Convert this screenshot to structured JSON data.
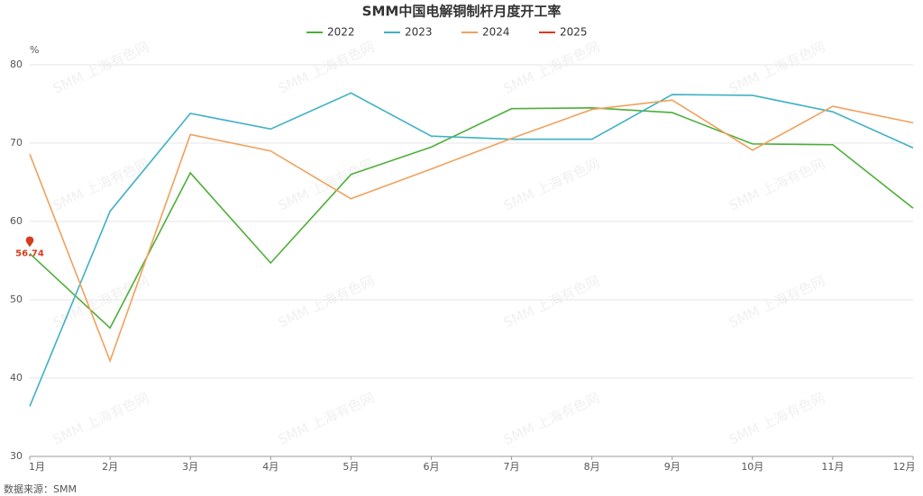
{
  "chart_data": {
    "type": "line",
    "title": "SMM中国电解铜制杆月度开工率",
    "y_unit": "%",
    "source": "数据来源：SMM",
    "watermark": "SMM 上海有色网",
    "categories": [
      "1月",
      "2月",
      "3月",
      "4月",
      "5月",
      "6月",
      "7月",
      "8月",
      "9月",
      "10月",
      "11月",
      "12月"
    ],
    "ylim": [
      30,
      80
    ],
    "yticks": [
      30,
      40,
      50,
      60,
      70,
      80
    ],
    "grid": true,
    "legend": "top",
    "series": [
      {
        "name": "2022",
        "color": "#4caf37",
        "values": [
          55.9,
          46.4,
          66.2,
          54.7,
          66.0,
          69.5,
          74.4,
          74.5,
          73.9,
          69.9,
          69.8,
          61.7
        ]
      },
      {
        "name": "2023",
        "color": "#3fb1c4",
        "values": [
          36.4,
          61.3,
          73.8,
          71.8,
          76.4,
          70.9,
          70.5,
          70.5,
          76.2,
          76.1,
          74.0,
          69.4
        ]
      },
      {
        "name": "2024",
        "color": "#f0a15c",
        "values": [
          68.6,
          42.2,
          71.1,
          69.0,
          62.9,
          66.7,
          70.6,
          74.3,
          75.5,
          69.1,
          74.7,
          72.6
        ]
      },
      {
        "name": "2025",
        "color": "#d83a1e",
        "show_label": true,
        "values": [
          56.74,
          null,
          null,
          null,
          null,
          null,
          null,
          null,
          null,
          null,
          null,
          null
        ]
      }
    ]
  }
}
